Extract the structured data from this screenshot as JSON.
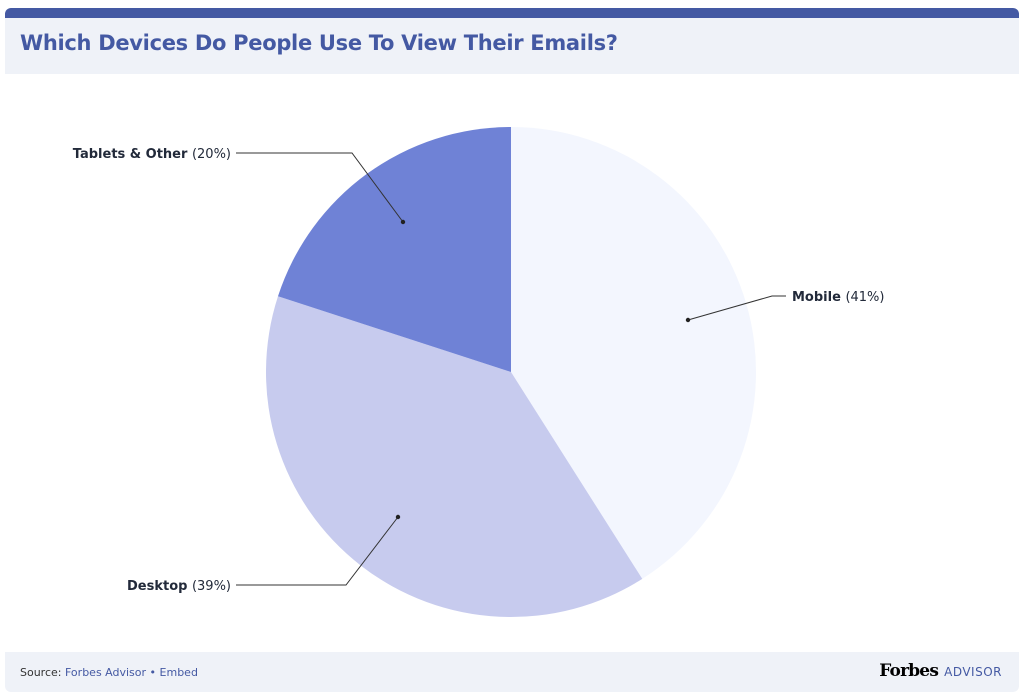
{
  "chart_data": {
    "type": "pie",
    "title": "Which Devices Do People Use To View Their Emails?",
    "slices": [
      {
        "name": "Mobile",
        "label": "(41%)",
        "value": 41,
        "color": "#f3f6fe"
      },
      {
        "name": "Desktop",
        "label": "(39%)",
        "value": 39,
        "color": "#c7cbee"
      },
      {
        "name": "Tablets & Other",
        "label": "(20%)",
        "value": 20,
        "color": "#6f82d6"
      }
    ]
  },
  "footer": {
    "source_prefix": "Source:",
    "source": "Forbes Advisor",
    "separator": "•",
    "embed": "Embed",
    "brand": "Forbes",
    "brand_suffix": "ADVISOR"
  },
  "colors": {
    "accent": "#4459a3",
    "panel": "#eff2f8"
  }
}
